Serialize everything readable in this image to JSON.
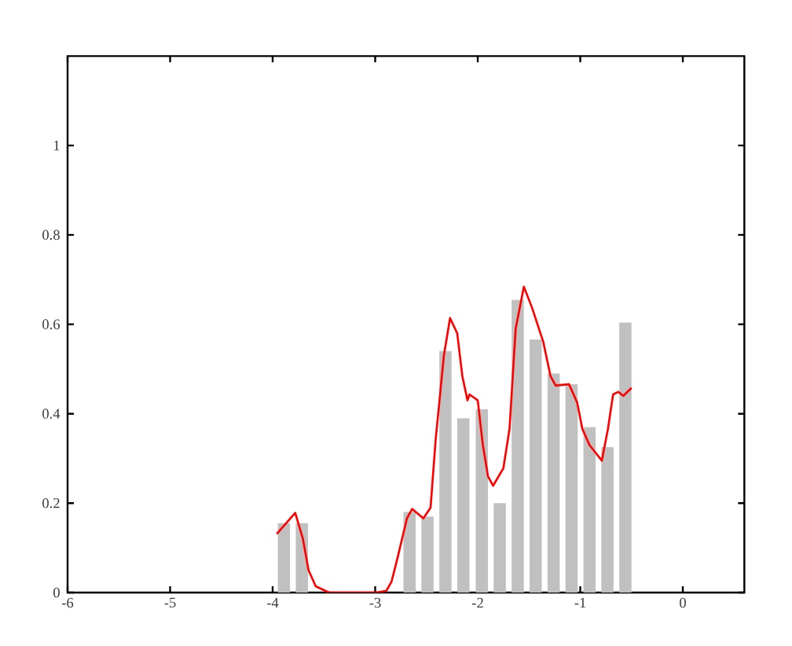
{
  "chart_data": {
    "type": "histogram",
    "xlim": [
      -6,
      0.6
    ],
    "ylim": [
      0,
      1.2
    ],
    "xticks": [
      -6,
      -5,
      -4,
      -3,
      -2,
      -1,
      0
    ],
    "yticks": [
      0,
      0.2,
      0.4,
      0.6,
      0.8,
      1
    ],
    "series": [
      {
        "type": "histogram",
        "color": "#c0c0c0",
        "bins": [
          -3.98,
          -3.8,
          -3.63,
          -2.75,
          -2.58,
          -2.4,
          -2.23,
          -2.05,
          -1.87,
          -1.7,
          -1.52,
          -1.35,
          -1.17,
          -1.0,
          -0.82,
          -0.65,
          -0.47
        ],
        "values": [
          0.155,
          0.155,
          0,
          0.18,
          0.17,
          0.54,
          0.39,
          0.41,
          0.2,
          0.655,
          0.566,
          0.49,
          0.466,
          0.37,
          0.325,
          0.604
        ]
      },
      {
        "type": "line",
        "color": "#ff0000",
        "line_style": "solid",
        "x": [
          -3.96,
          -3.78,
          -3.705,
          -3.65,
          -3.58,
          -3.45,
          -2.99,
          -2.89,
          -2.84,
          -2.79,
          -2.69,
          -2.64,
          -2.53,
          -2.46,
          -2.41,
          -2.33,
          -2.27,
          -2.2,
          -2.15,
          -2.1,
          -2.08,
          -2.0,
          -1.95,
          -1.9,
          -1.85,
          -1.75,
          -1.69,
          -1.63,
          -1.55,
          -1.47,
          -1.36,
          -1.29,
          -1.24,
          -1.11,
          -1.03,
          -0.98,
          -0.91,
          -0.79,
          -0.73,
          -0.68,
          -0.63,
          -0.58,
          -0.5
        ],
        "values": [
          0.131,
          0.178,
          0.12,
          0.05,
          0.014,
          0,
          0,
          0.004,
          0.025,
          0.07,
          0.166,
          0.187,
          0.166,
          0.19,
          0.343,
          0.53,
          0.614,
          0.58,
          0.484,
          0.43,
          0.443,
          0.43,
          0.33,
          0.26,
          0.239,
          0.278,
          0.366,
          0.59,
          0.684,
          0.637,
          0.56,
          0.484,
          0.463,
          0.466,
          0.425,
          0.366,
          0.33,
          0.295,
          0.366,
          0.443,
          0.449,
          0.44,
          0.458
        ]
      }
    ]
  }
}
